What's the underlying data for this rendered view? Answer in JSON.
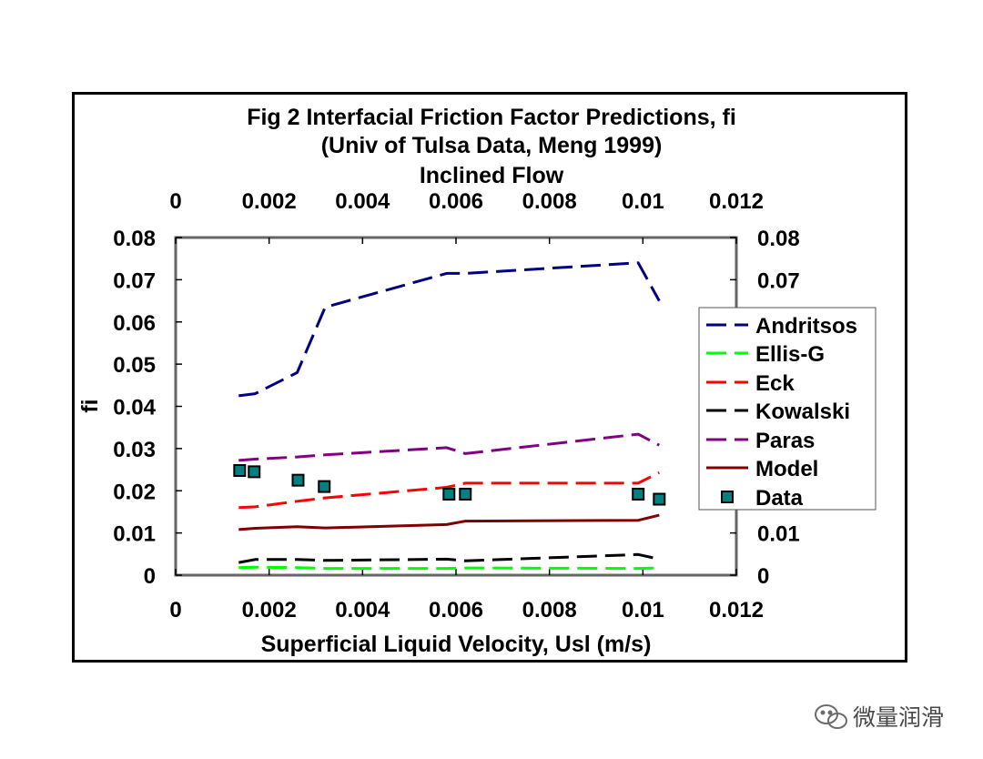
{
  "watermark": {
    "text": "微量润滑",
    "icon": "wechat-icon"
  },
  "chart_data": {
    "type": "line",
    "title_lines": [
      "Fig 2  Interfacial Friction Factor Predictions, fi",
      "(Univ of Tulsa Data, Meng 1999)",
      "Inclined Flow"
    ],
    "xlabel": "Superficial Liquid Velocity, Usl (m/s)",
    "ylabel": "fi",
    "xlim": [
      0,
      0.012
    ],
    "ylim": [
      0,
      0.08
    ],
    "x_ticks": [
      "0",
      "0.002",
      "0.004",
      "0.006",
      "0.008",
      "0.01",
      "0.012"
    ],
    "y_ticks": [
      "0",
      "0.01",
      "0.02",
      "0.03",
      "0.04",
      "0.05",
      "0.06",
      "0.07",
      "0.08"
    ],
    "x_tick_values": [
      0,
      0.002,
      0.004,
      0.006,
      0.008,
      0.01,
      0.012
    ],
    "y_tick_values": [
      0,
      0.01,
      0.02,
      0.03,
      0.04,
      0.05,
      0.06,
      0.07,
      0.08
    ],
    "secondary_axes": "top and right axes mirror bottom and left",
    "grid": false,
    "legend_position": "right",
    "series": [
      {
        "name": "Andritsos",
        "style": "dashed",
        "color": "#000080",
        "x": [
          0.00135,
          0.0017,
          0.0026,
          0.0032,
          0.0058,
          0.0062,
          0.0099,
          0.01035
        ],
        "y": [
          0.0425,
          0.043,
          0.048,
          0.0635,
          0.0715,
          0.0715,
          0.074,
          0.065
        ]
      },
      {
        "name": "Ellis-G",
        "style": "dashed",
        "color": "#00ff00",
        "x": [
          0.00135,
          0.0017,
          0.0026,
          0.0032,
          0.0058,
          0.0062,
          0.0099,
          0.01035
        ],
        "y": [
          0.0018,
          0.0019,
          0.0018,
          0.0016,
          0.0016,
          0.0017,
          0.0016,
          0.0017
        ]
      },
      {
        "name": " Eck",
        "style": "dashed",
        "color": "#ff0000",
        "x": [
          0.00135,
          0.0017,
          0.0026,
          0.0032,
          0.0058,
          0.0062,
          0.0099,
          0.01035
        ],
        "y": [
          0.016,
          0.0162,
          0.0175,
          0.0183,
          0.0208,
          0.0218,
          0.0218,
          0.0243
        ]
      },
      {
        "name": "Kowalski",
        "style": "dashed",
        "color": "#000000",
        "x": [
          0.00135,
          0.0017,
          0.0026,
          0.0032,
          0.0058,
          0.0062,
          0.0099,
          0.01035
        ],
        "y": [
          0.003,
          0.0037,
          0.0037,
          0.0035,
          0.0038,
          0.0034,
          0.0049,
          0.0038
        ]
      },
      {
        "name": "Paras",
        "style": "dashed",
        "color": "#800080",
        "x": [
          0.00135,
          0.0017,
          0.0026,
          0.0032,
          0.0058,
          0.0062,
          0.0099,
          0.01035
        ],
        "y": [
          0.0272,
          0.0275,
          0.028,
          0.0285,
          0.0302,
          0.0288,
          0.0334,
          0.0308
        ]
      },
      {
        "name": "Model",
        "style": "solid",
        "color": "#800000",
        "x": [
          0.00135,
          0.0017,
          0.0026,
          0.0032,
          0.0058,
          0.0062,
          0.0099,
          0.01035
        ],
        "y": [
          0.0108,
          0.0111,
          0.0115,
          0.0112,
          0.012,
          0.0128,
          0.013,
          0.0142
        ]
      },
      {
        "name": "Data",
        "style": "markers",
        "color": "#008080",
        "x": [
          0.00137,
          0.00168,
          0.00262,
          0.00318,
          0.00585,
          0.0062,
          0.0099,
          0.01035
        ],
        "y": [
          0.0248,
          0.0245,
          0.0225,
          0.021,
          0.0192,
          0.0192,
          0.0192,
          0.018
        ]
      }
    ]
  }
}
